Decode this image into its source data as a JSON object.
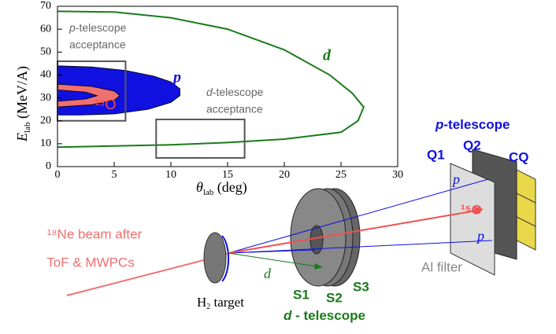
{
  "chart_data": {
    "type": "line",
    "x_label": {
      "symbol": "θ",
      "subscript": "lab",
      "unit": " (deg)"
    },
    "y_label": {
      "symbol": "E",
      "subscript": "lab",
      "unit": " (MeV/A)"
    },
    "xlim": [
      0,
      30
    ],
    "xticks": [
      0,
      5,
      10,
      15,
      20,
      25,
      30
    ],
    "ylim": [
      0,
      70
    ],
    "yticks": [
      0,
      10,
      20,
      30,
      40,
      50,
      60,
      70
    ],
    "series": [
      {
        "name": "d",
        "type": "line",
        "color": "#1a7a1a",
        "x": [
          0,
          5,
          10,
          15,
          20,
          24,
          26,
          27,
          26.5,
          25,
          20,
          15,
          10,
          5,
          0
        ],
        "values": [
          67.8,
          67.5,
          65,
          60,
          51,
          40,
          32,
          26,
          20,
          15,
          12,
          10.5,
          9.5,
          9,
          8.5
        ]
      },
      {
        "name": "p",
        "type": "area",
        "color": "#1010e0",
        "x": [
          0,
          3,
          6,
          8.5,
          10,
          10.8,
          10.8,
          10,
          8,
          5,
          2,
          0
        ],
        "values": [
          44,
          43.5,
          42,
          39.5,
          37,
          34,
          31,
          28,
          25,
          23,
          22.5,
          22.5
        ]
      },
      {
        "name": "¹⁵O",
        "type": "area",
        "color": "#f07070",
        "x": [
          0,
          3,
          5,
          5.5,
          5,
          3,
          0,
          0,
          2.5,
          3.5,
          2.5,
          0
        ],
        "values": [
          36,
          35,
          33,
          31,
          29,
          27,
          26,
          28.5,
          29.5,
          31,
          32.5,
          33.5
        ]
      }
    ],
    "boxes": [
      {
        "label_italic": "p",
        "label_rest": "-telescope",
        "label_line2": "acceptance",
        "x": [
          0,
          6
        ],
        "y": [
          20,
          46
        ]
      },
      {
        "label_italic": "d",
        "label_rest": "-telescope",
        "label_line2": "acceptance",
        "x": [
          8.7,
          16.5
        ],
        "y": [
          3.8,
          20.6
        ]
      }
    ]
  },
  "diagram": {
    "beam_line1": "¹⁸Ne beam after",
    "beam_line2": "ToF & MWPCs",
    "target": {
      "symbol": "H",
      "subscript": "2",
      "rest": " target"
    },
    "d_arrow": "d",
    "detectors": [
      "S1",
      "S2",
      "S3"
    ],
    "d_telescope": {
      "italic": "d",
      "rest": " - telescope"
    },
    "p_telescope": {
      "italic": "p",
      "rest": "-telescope"
    },
    "p_layers": [
      "Q1",
      "Q2",
      "CQ"
    ],
    "p_upper": "p",
    "oxygen": "¹⁵O",
    "p_lower": "p",
    "filter": "Al filter"
  }
}
